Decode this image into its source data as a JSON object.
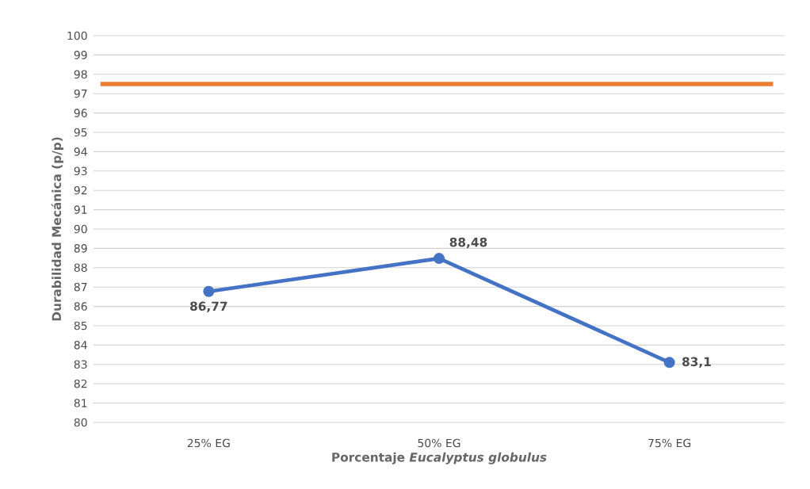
{
  "chart_data": {
    "type": "line",
    "xlabel": "Porcentaje *Eucalyptus globulus*",
    "ylabel": "Durabilidad Mecánica (p/p)",
    "categories": [
      "25% EG",
      "50% EG",
      "75% EG"
    ],
    "series": [
      {
        "color": "#4472c4",
        "values": [
          86.77,
          88.48,
          83.1
        ],
        "value_labels": [
          "86,77",
          "88,48",
          "83,1"
        ]
      }
    ],
    "ref_lines": [
      {
        "axis": "y",
        "value": 97.5,
        "color": "#ed7d31"
      }
    ],
    "ylim": [
      80,
      100
    ],
    "yticks": [
      80,
      81,
      82,
      83,
      84,
      85,
      86,
      87,
      88,
      89,
      90,
      91,
      92,
      93,
      94,
      95,
      96,
      97,
      98,
      99,
      100
    ],
    "grid": "y",
    "marker": "circle",
    "line_style": "solid"
  }
}
